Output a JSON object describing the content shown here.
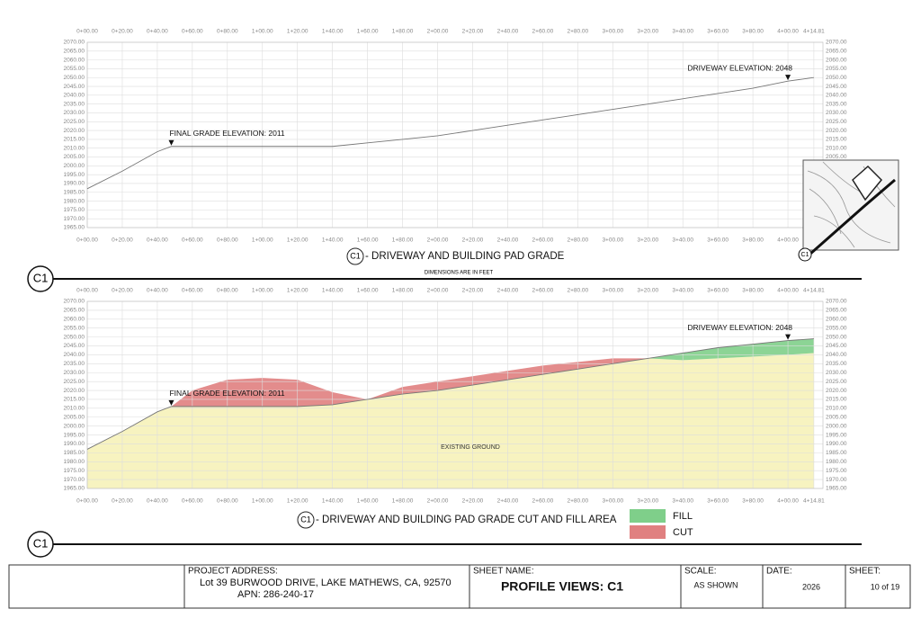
{
  "stations": [
    {
      "value": 0,
      "label": "0+00.00"
    },
    {
      "value": 20,
      "label": "0+20.00"
    },
    {
      "value": 40,
      "label": "0+40.00"
    },
    {
      "value": 60,
      "label": "0+60.00"
    },
    {
      "value": 80,
      "label": "0+80.00"
    },
    {
      "value": 100,
      "label": "1+00.00"
    },
    {
      "value": 120,
      "label": "1+20.00"
    },
    {
      "value": 140,
      "label": "1+40.00"
    },
    {
      "value": 160,
      "label": "1+60.00"
    },
    {
      "value": 180,
      "label": "1+80.00"
    },
    {
      "value": 200,
      "label": "2+00.00"
    },
    {
      "value": 220,
      "label": "2+20.00"
    },
    {
      "value": 240,
      "label": "2+40.00"
    },
    {
      "value": 260,
      "label": "2+60.00"
    },
    {
      "value": 280,
      "label": "2+80.00"
    },
    {
      "value": 300,
      "label": "3+00.00"
    },
    {
      "value": 320,
      "label": "3+20.00"
    },
    {
      "value": 340,
      "label": "3+40.00"
    },
    {
      "value": 360,
      "label": "3+60.00"
    },
    {
      "value": 380,
      "label": "3+80.00"
    },
    {
      "value": 400,
      "label": "4+00.00"
    },
    {
      "value": 414.81,
      "label": "4+14.81"
    }
  ],
  "elevations": [
    {
      "value": 1965,
      "label": "1965.00"
    },
    {
      "value": 1970,
      "label": "1970.00"
    },
    {
      "value": 1975,
      "label": "1975.00"
    },
    {
      "value": 1980,
      "label": "1980.00"
    },
    {
      "value": 1985,
      "label": "1985.00"
    },
    {
      "value": 1990,
      "label": "1990.00"
    },
    {
      "value": 1995,
      "label": "1995.00"
    },
    {
      "value": 2000,
      "label": "2000.00"
    },
    {
      "value": 2005,
      "label": "2005.00"
    },
    {
      "value": 2010,
      "label": "2010.00"
    },
    {
      "value": 2015,
      "label": "2015.00"
    },
    {
      "value": 2020,
      "label": "2020.00"
    },
    {
      "value": 2025,
      "label": "2025.00"
    },
    {
      "value": 2030,
      "label": "2030.00"
    },
    {
      "value": 2035,
      "label": "2035.00"
    },
    {
      "value": 2040,
      "label": "2040.00"
    },
    {
      "value": 2045,
      "label": "2045.00"
    },
    {
      "value": 2050,
      "label": "2050.00"
    },
    {
      "value": 2055,
      "label": "2055.00"
    },
    {
      "value": 2060,
      "label": "2060.00"
    },
    {
      "value": 2065,
      "label": "2065.00"
    },
    {
      "value": 2070,
      "label": "2070.00"
    }
  ],
  "xlim": [
    0,
    420
  ],
  "ylim": [
    1965,
    2070
  ],
  "x": [
    0,
    20,
    40,
    48,
    60,
    80,
    100,
    120,
    140,
    160,
    180,
    200,
    220,
    240,
    260,
    280,
    300,
    320,
    340,
    360,
    380,
    400,
    414.81
  ],
  "profiles": [
    {
      "view_id": "C1",
      "title": "- DRIVEWAY AND BUILDING PAD GRADE",
      "section_id": "C1",
      "note": "DIMENSIONS ARE IN FEET",
      "grade": [
        1987,
        1997,
        2008,
        2011,
        2011,
        2011,
        2011,
        2011,
        2011,
        2013,
        2015,
        2017,
        2020,
        2023,
        2026,
        2029,
        2032,
        2035,
        2038,
        2041,
        2044,
        2048,
        2050
      ],
      "annotations": [
        {
          "text": "FINAL GRADE ELEVATION: 2011",
          "station": 48,
          "elevation": 2011
        },
        {
          "text": "DRIVEWAY ELEVATION: 2048",
          "station": 400,
          "elevation": 2048
        }
      ]
    },
    {
      "view_id": "C1",
      "title": "- DRIVEWAY AND BUILDING PAD GRADE CUT AND FILL AREA",
      "section_id": "C1",
      "ground_label": "EXISTING GROUND",
      "grade": [
        1987,
        1997,
        2008,
        2011,
        2011,
        2011,
        2011,
        2011,
        2012,
        2015,
        2018,
        2020,
        2023,
        2026,
        2029,
        2032,
        2035,
        2038,
        2041,
        2044,
        2046,
        2048,
        2049
      ],
      "ground": [
        1987,
        1997,
        2008,
        2011,
        2020,
        2026,
        2027,
        2026,
        2019,
        2015,
        2022,
        2025,
        2028,
        2031,
        2034,
        2036,
        2038,
        2038,
        2037,
        2038,
        2039,
        2040,
        2041
      ],
      "annotations": [
        {
          "text": "FINAL GRADE ELEVATION: 2011",
          "station": 48,
          "elevation": 2011
        },
        {
          "text": "DRIVEWAY ELEVATION: 2048",
          "station": 400,
          "elevation": 2048
        }
      ],
      "legend": [
        {
          "name": "FILL",
          "color": "#7fcf8a"
        },
        {
          "name": "CUT",
          "color": "#e08080"
        }
      ]
    }
  ],
  "keymap_label": "C1",
  "title_block": {
    "address_label": "PROJECT ADDRESS:",
    "address": "Lot 39 BURWOOD DRIVE, LAKE MATHEWS, CA, 92570",
    "apn": "APN: 286-240-17",
    "sheet_name_label": "SHEET NAME:",
    "sheet_name": "PROFILE VIEWS: C1",
    "scale_label": "SCALE:",
    "scale": "AS SHOWN",
    "date_label": "DATE:",
    "date": "2026",
    "sheet_label": "SHEET:",
    "sheet": "10 of 19"
  }
}
